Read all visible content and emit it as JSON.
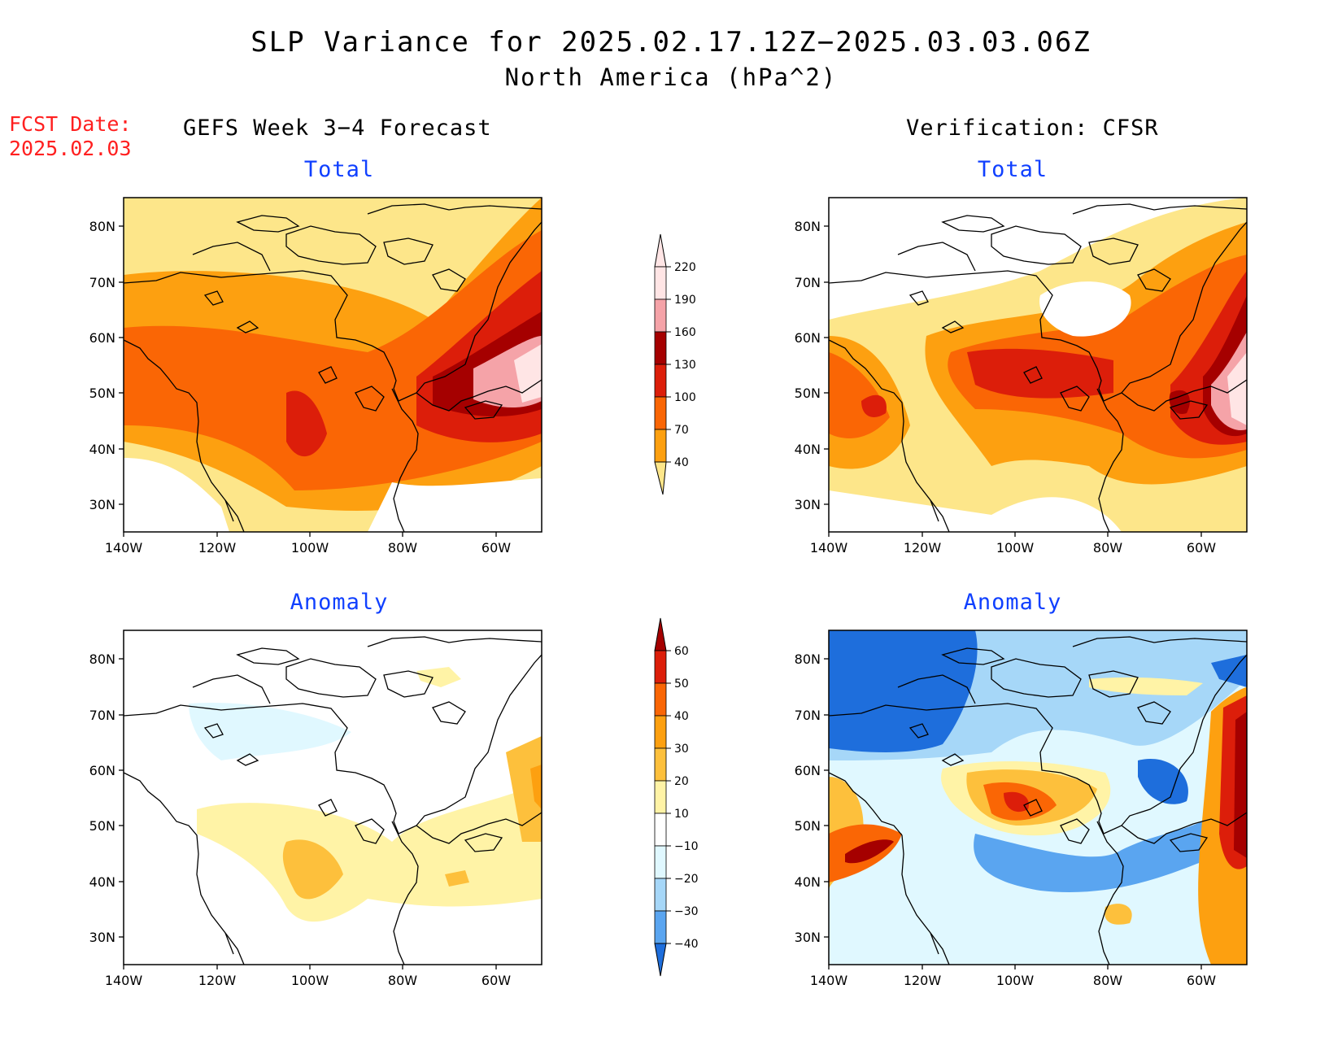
{
  "title_line1": "SLP Variance for 2025.02.17.12Z−2025.03.03.06Z",
  "title_line2": "North America (hPa^2)",
  "fcst_label": "FCST Date:",
  "fcst_date": "2025.02.03",
  "left_column_title": "GEFS Week 3−4 Forecast",
  "right_column_title": "Verification: CFSR",
  "panel_titles": {
    "total": "Total",
    "anomaly": "Anomaly"
  },
  "axes": {
    "lat_labels": [
      "80N",
      "70N",
      "60N",
      "50N",
      "40N",
      "30N"
    ],
    "lon_labels": [
      "140W",
      "120W",
      "100W",
      "80W",
      "60W"
    ]
  },
  "colorbar_total": {
    "labels": [
      "220",
      "190",
      "160",
      "130",
      "100",
      "70",
      "40"
    ],
    "colors": [
      "#ffe5e5",
      "#f5a3a8",
      "#a50000",
      "#dc1e0a",
      "#fa6605",
      "#fda010",
      "#fde68a"
    ]
  },
  "colorbar_anomaly": {
    "labels": [
      "60",
      "50",
      "40",
      "30",
      "20",
      "10",
      "−10",
      "−20",
      "−30",
      "−40"
    ],
    "colors": [
      "#a50000",
      "#dc1e0a",
      "#fa6605",
      "#fda010",
      "#fdc03c",
      "#fff3a6",
      "#ffffff",
      "#e0f8ff",
      "#a6d7f8",
      "#5aa5f0",
      "#1e6edc"
    ]
  },
  "colors": {
    "title_accent": "#1040ff",
    "fcst_red": "#ff2020"
  }
}
